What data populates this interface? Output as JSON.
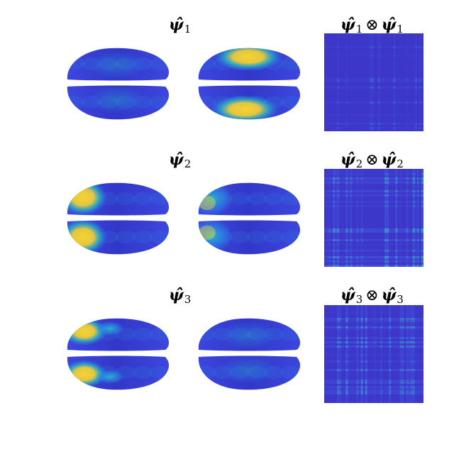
{
  "rows": [
    {
      "psi_symbol": "ψ̂",
      "index": "1",
      "kron_op": "⊗",
      "left_hotspot": "none",
      "right_hotspot": "temporal",
      "matrix_intensity": 0.25
    },
    {
      "psi_symbol": "ψ̂",
      "index": "2",
      "kron_op": "⊗",
      "left_hotspot": "frontal",
      "right_hotspot": "frontal-mild",
      "matrix_intensity": 0.6
    },
    {
      "psi_symbol": "ψ̂",
      "index": "3",
      "kron_op": "⊗",
      "left_hotspot": "frontal-lateral",
      "right_hotspot": "none",
      "matrix_intensity": 0.55
    }
  ],
  "colors": {
    "base": "#3a3fd6",
    "mid": "#2a8fe8",
    "cyan": "#25c3c3",
    "yellow": "#f6d431",
    "matrix_bg": "#3c36c9",
    "matrix_stripe": "#4a6af0",
    "matrix_hot": "#2fd3b0"
  }
}
